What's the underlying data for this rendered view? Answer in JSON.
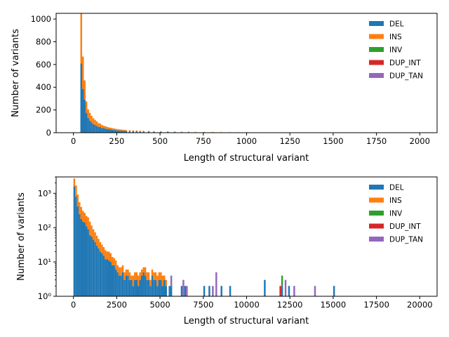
{
  "chart_data": [
    {
      "type": "histogram",
      "yscale": "linear",
      "xlabel": "Length of structural variant",
      "ylabel": "Number of variants",
      "xlim": [
        -100,
        2100
      ],
      "ylim": [
        0,
        1050
      ],
      "xticks": [
        0,
        250,
        500,
        750,
        1000,
        1250,
        1500,
        1750,
        2000
      ],
      "xtick_labels": [
        "0",
        "250",
        "500",
        "750",
        "1000",
        "1250",
        "1500",
        "1750",
        "2000"
      ],
      "yticks": [
        0,
        200,
        400,
        600,
        800,
        1000
      ],
      "ytick_labels": [
        "0",
        "200",
        "400",
        "600",
        "800",
        "1000"
      ],
      "legend_position": "top-right",
      "grid": false,
      "bin_width": 10,
      "series": [
        {
          "name": "DEL",
          "color": "#1f77b4",
          "bins": [
            [
              40,
              610
            ],
            [
              50,
              385
            ],
            [
              60,
              290
            ],
            [
              70,
              175
            ],
            [
              80,
              130
            ],
            [
              90,
              105
            ],
            [
              100,
              90
            ],
            [
              110,
              75
            ],
            [
              120,
              68
            ],
            [
              130,
              60
            ],
            [
              140,
              52
            ],
            [
              150,
              50
            ],
            [
              160,
              42
            ],
            [
              170,
              40
            ],
            [
              180,
              36
            ],
            [
              190,
              33
            ],
            [
              200,
              30
            ],
            [
              210,
              28
            ],
            [
              220,
              26
            ],
            [
              230,
              24
            ],
            [
              240,
              22
            ],
            [
              250,
              20
            ],
            [
              260,
              19
            ],
            [
              270,
              18
            ],
            [
              280,
              17
            ],
            [
              290,
              16
            ],
            [
              300,
              15
            ],
            [
              320,
              14
            ],
            [
              340,
              13
            ],
            [
              360,
              12
            ],
            [
              380,
              11
            ],
            [
              400,
              10
            ],
            [
              430,
              9
            ],
            [
              460,
              8
            ],
            [
              500,
              8
            ],
            [
              540,
              7
            ],
            [
              580,
              6
            ],
            [
              620,
              5
            ],
            [
              660,
              5
            ],
            [
              700,
              4
            ],
            [
              750,
              4
            ],
            [
              800,
              3
            ],
            [
              850,
              3
            ],
            [
              900,
              3
            ],
            [
              950,
              2
            ],
            [
              1000,
              2
            ],
            [
              1100,
              2
            ],
            [
              1200,
              2
            ],
            [
              1300,
              1
            ],
            [
              1450,
              1
            ],
            [
              1600,
              1
            ],
            [
              1750,
              1
            ],
            [
              1900,
              1
            ]
          ]
        },
        {
          "name": "INS",
          "color": "#ff7f0e",
          "bins": [
            [
              40,
              440
            ],
            [
              50,
              285
            ],
            [
              60,
              170
            ],
            [
              70,
              100
            ],
            [
              80,
              75
            ],
            [
              90,
              70
            ],
            [
              100,
              58
            ],
            [
              110,
              52
            ],
            [
              120,
              45
            ],
            [
              130,
              40
            ],
            [
              140,
              32
            ],
            [
              150,
              30
            ],
            [
              160,
              26
            ],
            [
              170,
              22
            ],
            [
              180,
              20
            ],
            [
              190,
              18
            ],
            [
              200,
              16
            ],
            [
              210,
              15
            ],
            [
              220,
              14
            ],
            [
              230,
              13
            ],
            [
              240,
              12
            ],
            [
              250,
              11
            ],
            [
              260,
              10
            ],
            [
              270,
              10
            ],
            [
              280,
              9
            ],
            [
              290,
              9
            ],
            [
              300,
              8
            ],
            [
              320,
              8
            ],
            [
              340,
              7
            ],
            [
              360,
              7
            ],
            [
              380,
              6
            ],
            [
              400,
              6
            ],
            [
              430,
              6
            ],
            [
              460,
              5
            ],
            [
              500,
              5
            ],
            [
              540,
              5
            ],
            [
              580,
              4
            ],
            [
              620,
              4
            ],
            [
              660,
              4
            ],
            [
              700,
              3
            ],
            [
              750,
              3
            ],
            [
              800,
              3
            ],
            [
              850,
              2
            ],
            [
              900,
              2
            ],
            [
              950,
              2
            ],
            [
              1000,
              2
            ],
            [
              1100,
              1
            ],
            [
              1200,
              1
            ],
            [
              1300,
              1
            ],
            [
              1450,
              1
            ],
            [
              1600,
              1
            ],
            [
              1750,
              2
            ],
            [
              1900,
              1
            ],
            [
              1990,
              1
            ]
          ]
        },
        {
          "name": "INV",
          "color": "#2ca02c",
          "bins": []
        },
        {
          "name": "DUP_INT",
          "color": "#d62728",
          "bins": []
        },
        {
          "name": "DUP_TAN",
          "color": "#9467bd",
          "bins": []
        }
      ]
    },
    {
      "type": "histogram",
      "yscale": "log",
      "xlabel": "Length of structural variant",
      "ylabel": "Number of variants",
      "xlim": [
        -1000,
        21000
      ],
      "ylim": [
        1,
        3000
      ],
      "xticks": [
        0,
        2500,
        5000,
        7500,
        10000,
        12500,
        15000,
        17500,
        20000
      ],
      "xtick_labels": [
        "0",
        "2500",
        "5000",
        "7500",
        "10000",
        "12500",
        "15000",
        "17500",
        "20000"
      ],
      "yticks": [
        1,
        10,
        100,
        1000
      ],
      "ytick_labels": [
        "10⁰",
        "10¹",
        "10²",
        "10³"
      ],
      "legend_position": "top-right",
      "grid": false,
      "bin_width": 100,
      "series": [
        {
          "name": "DEL",
          "color": "#1f77b4",
          "bins": [
            [
              0,
              1600
            ],
            [
              100,
              800
            ],
            [
              200,
              420
            ],
            [
              300,
              250
            ],
            [
              400,
              180
            ],
            [
              500,
              150
            ],
            [
              600,
              140
            ],
            [
              700,
              110
            ],
            [
              800,
              90
            ],
            [
              900,
              60
            ],
            [
              1000,
              55
            ],
            [
              1100,
              45
            ],
            [
              1200,
              38
            ],
            [
              1300,
              30
            ],
            [
              1400,
              25
            ],
            [
              1500,
              20
            ],
            [
              1600,
              18
            ],
            [
              1700,
              15
            ],
            [
              1800,
              12
            ],
            [
              1900,
              12
            ],
            [
              2000,
              11
            ],
            [
              2100,
              10
            ],
            [
              2200,
              8
            ],
            [
              2300,
              8
            ],
            [
              2400,
              6
            ],
            [
              2500,
              5
            ],
            [
              2600,
              4
            ],
            [
              2700,
              4
            ],
            [
              2800,
              5
            ],
            [
              2900,
              3
            ],
            [
              3000,
              4
            ],
            [
              3100,
              4
            ],
            [
              3200,
              3
            ],
            [
              3300,
              3
            ],
            [
              3400,
              2
            ],
            [
              3500,
              3
            ],
            [
              3600,
              3
            ],
            [
              3700,
              2
            ],
            [
              3800,
              3
            ],
            [
              3900,
              4
            ],
            [
              4000,
              5
            ],
            [
              4100,
              4
            ],
            [
              4200,
              3
            ],
            [
              4300,
              3
            ],
            [
              4400,
              2
            ],
            [
              4500,
              4
            ],
            [
              4600,
              3
            ],
            [
              4700,
              3
            ],
            [
              4800,
              2
            ],
            [
              4900,
              3
            ],
            [
              5000,
              3
            ],
            [
              5100,
              2
            ],
            [
              5200,
              3
            ],
            [
              5300,
              2
            ],
            [
              5500,
              2
            ],
            [
              5600,
              2
            ],
            [
              6200,
              2
            ],
            [
              6400,
              2
            ],
            [
              7500,
              2
            ],
            [
              7800,
              2
            ],
            [
              8500,
              2
            ],
            [
              9000,
              2
            ],
            [
              11000,
              3
            ],
            [
              12000,
              2
            ],
            [
              12400,
              2
            ],
            [
              15000,
              2
            ]
          ]
        },
        {
          "name": "INS",
          "color": "#ff7f0e",
          "bins": [
            [
              0,
              1100
            ],
            [
              100,
              900
            ],
            [
              200,
              500
            ],
            [
              300,
              300
            ],
            [
              400,
              220
            ],
            [
              500,
              160
            ],
            [
              600,
              130
            ],
            [
              700,
              110
            ],
            [
              800,
              110
            ],
            [
              900,
              90
            ],
            [
              1000,
              60
            ],
            [
              1100,
              45
            ],
            [
              1200,
              35
            ],
            [
              1300,
              28
            ],
            [
              1400,
              22
            ],
            [
              1500,
              18
            ],
            [
              1600,
              14
            ],
            [
              1700,
              12
            ],
            [
              1800,
              10
            ],
            [
              1900,
              8
            ],
            [
              2000,
              9
            ],
            [
              2100,
              8
            ],
            [
              2200,
              6
            ],
            [
              2300,
              5
            ],
            [
              2400,
              5
            ],
            [
              2500,
              3
            ],
            [
              2600,
              3
            ],
            [
              2700,
              3
            ],
            [
              2800,
              3
            ],
            [
              2900,
              2
            ],
            [
              3000,
              2
            ],
            [
              3100,
              2
            ],
            [
              3200,
              2
            ],
            [
              3300,
              1
            ],
            [
              3400,
              2
            ],
            [
              3500,
              2
            ],
            [
              3600,
              2
            ],
            [
              3700,
              2
            ],
            [
              3800,
              2
            ],
            [
              3900,
              2
            ],
            [
              4000,
              2
            ],
            [
              4100,
              3
            ],
            [
              4200,
              2
            ],
            [
              4300,
              2
            ],
            [
              4400,
              1
            ],
            [
              4500,
              2
            ],
            [
              4600,
              2
            ],
            [
              4700,
              2
            ],
            [
              4800,
              2
            ],
            [
              4900,
              2
            ],
            [
              5000,
              2
            ],
            [
              5100,
              2
            ],
            [
              5200,
              1
            ],
            [
              5300,
              1
            ],
            [
              7900,
              1
            ],
            [
              12200,
              1
            ],
            [
              12600,
              1
            ]
          ]
        },
        {
          "name": "INV",
          "color": "#2ca02c",
          "bins": [
            [
              12000,
              2
            ]
          ]
        },
        {
          "name": "DUP_INT",
          "color": "#d62728",
          "bins": [
            [
              11900,
              2
            ]
          ]
        },
        {
          "name": "DUP_TAN",
          "color": "#9467bd",
          "bins": [
            [
              5600,
              2
            ],
            [
              6300,
              3
            ],
            [
              6500,
              2
            ],
            [
              8000,
              2
            ],
            [
              8200,
              5
            ],
            [
              12200,
              2
            ],
            [
              12700,
              2
            ],
            [
              13900,
              2
            ]
          ]
        }
      ]
    }
  ]
}
